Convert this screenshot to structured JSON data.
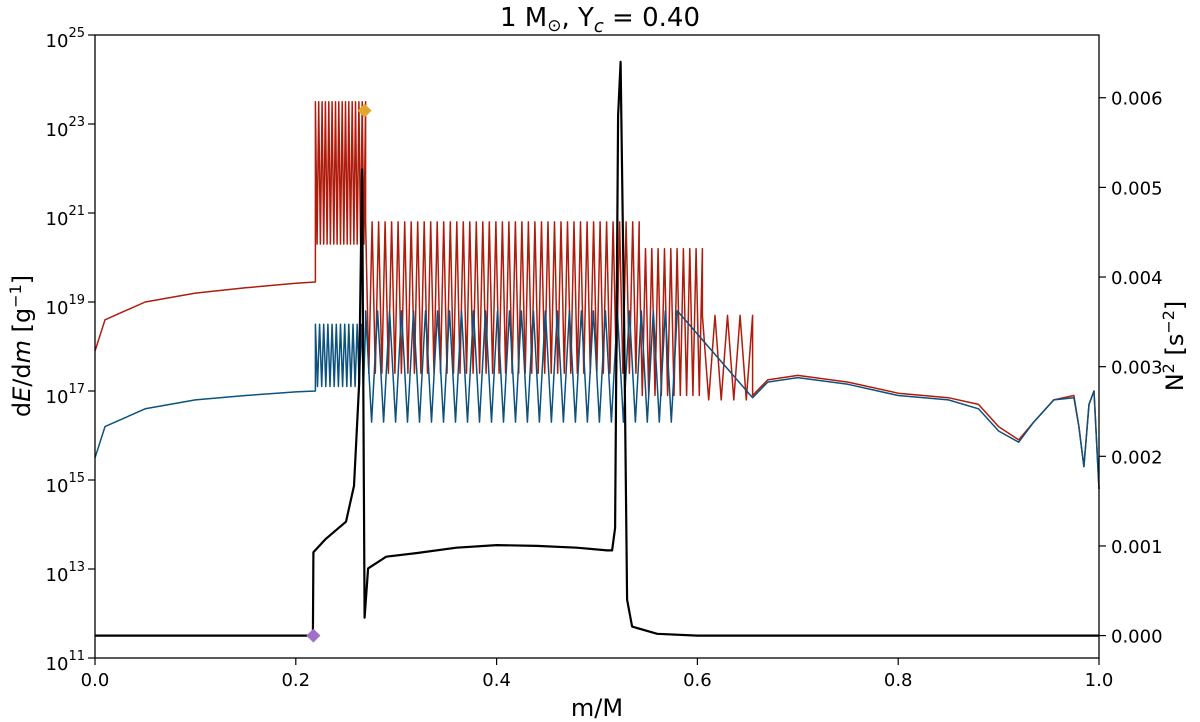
{
  "chart_data": {
    "type": "line",
    "title": {
      "main": "1 M",
      "sun_symbol": "⊙",
      "sep": ", Y",
      "sub": "c",
      "tail": " = 0.40"
    },
    "xlabel": "m/M",
    "ylabel_left": {
      "pre": "d",
      "E": "E",
      "mid": "/d",
      "m": "m",
      "post": " [g",
      "sup": "−1",
      "end": "]"
    },
    "ylabel_right": {
      "pre": "N",
      "sup1": "2",
      "mid": " [s",
      "sup2": "−2",
      "end": "]"
    },
    "xlim": [
      0.0,
      1.0
    ],
    "ylim_left_log10": [
      11,
      25
    ],
    "ylim_right": [
      -0.00025,
      0.0067
    ],
    "left_scale": "log",
    "grid": false,
    "x_ticks": [
      {
        "v": 0.0,
        "label": "0.0"
      },
      {
        "v": 0.2,
        "label": "0.2"
      },
      {
        "v": 0.4,
        "label": "0.4"
      },
      {
        "v": 0.6,
        "label": "0.6"
      },
      {
        "v": 0.8,
        "label": "0.8"
      },
      {
        "v": 1.0,
        "label": "1.0"
      }
    ],
    "left_ticks": [
      {
        "exp": 11,
        "base": "10",
        "sup": "11"
      },
      {
        "exp": 13,
        "base": "10",
        "sup": "13"
      },
      {
        "exp": 15,
        "base": "10",
        "sup": "15"
      },
      {
        "exp": 17,
        "base": "10",
        "sup": "17"
      },
      {
        "exp": 19,
        "base": "10",
        "sup": "19"
      },
      {
        "exp": 21,
        "base": "10",
        "sup": "21"
      },
      {
        "exp": 23,
        "base": "10",
        "sup": "23"
      },
      {
        "exp": 25,
        "base": "10",
        "sup": "25"
      }
    ],
    "right_ticks": [
      {
        "v": 0.0,
        "label": "0.000"
      },
      {
        "v": 0.001,
        "label": "0.001"
      },
      {
        "v": 0.002,
        "label": "0.002"
      },
      {
        "v": 0.003,
        "label": "0.003"
      },
      {
        "v": 0.004,
        "label": "0.004"
      },
      {
        "v": 0.005,
        "label": "0.005"
      },
      {
        "v": 0.006,
        "label": "0.006"
      }
    ],
    "series": [
      {
        "axis": "left",
        "color": "#b01c0c",
        "envelope": [
          [
            0.0,
            17.9
          ],
          [
            0.01,
            18.6
          ],
          [
            0.05,
            19.0
          ],
          [
            0.1,
            19.2
          ],
          [
            0.15,
            19.32
          ],
          [
            0.2,
            19.42
          ],
          [
            0.2195,
            19.45
          ]
        ],
        "osc_bands": [
          {
            "x0": 0.2195,
            "x1": 0.2695,
            "top": 23.5,
            "bottom": 20.3,
            "cycles": 15
          },
          {
            "x0": 0.2695,
            "x1": 0.542,
            "top": 20.8,
            "bottom": 17.4,
            "cycles": 42
          },
          {
            "x0": 0.542,
            "x1": 0.605,
            "top": 20.2,
            "bottom": 16.9,
            "cycles": 10
          },
          {
            "x0": 0.605,
            "x1": 0.655,
            "top": 18.7,
            "bottom": 16.8,
            "cycles": 4
          }
        ],
        "tail": [
          [
            0.655,
            16.9
          ],
          [
            0.67,
            17.25
          ],
          [
            0.7,
            17.35
          ],
          [
            0.75,
            17.2
          ],
          [
            0.8,
            16.95
          ],
          [
            0.85,
            16.85
          ],
          [
            0.88,
            16.7
          ],
          [
            0.9,
            16.2
          ],
          [
            0.92,
            15.9
          ],
          [
            0.935,
            16.3
          ],
          [
            0.955,
            16.8
          ],
          [
            0.975,
            16.9
          ],
          [
            0.98,
            16.2
          ],
          [
            0.985,
            15.3
          ],
          [
            0.99,
            16.7
          ],
          [
            0.995,
            17.0
          ],
          [
            1.0,
            14.8
          ]
        ]
      },
      {
        "axis": "left",
        "color": "#0d527e",
        "envelope": [
          [
            0.0,
            15.5
          ],
          [
            0.01,
            16.2
          ],
          [
            0.05,
            16.6
          ],
          [
            0.1,
            16.8
          ],
          [
            0.15,
            16.9
          ],
          [
            0.2,
            16.98
          ],
          [
            0.2195,
            17.0
          ]
        ],
        "osc_bands": [
          {
            "x0": 0.2195,
            "x1": 0.2695,
            "top": 18.5,
            "bottom": 17.1,
            "cycles": 12
          },
          {
            "x0": 0.2695,
            "x1": 0.58,
            "top": 18.8,
            "bottom": 16.3,
            "cycles": 26
          }
        ],
        "tail": [
          [
            0.655,
            16.85
          ],
          [
            0.67,
            17.2
          ],
          [
            0.7,
            17.3
          ],
          [
            0.75,
            17.15
          ],
          [
            0.8,
            16.9
          ],
          [
            0.85,
            16.8
          ],
          [
            0.88,
            16.6
          ],
          [
            0.9,
            16.1
          ],
          [
            0.92,
            15.85
          ],
          [
            0.935,
            16.3
          ],
          [
            0.955,
            16.8
          ],
          [
            0.975,
            16.85
          ],
          [
            0.98,
            16.2
          ],
          [
            0.985,
            15.3
          ],
          [
            0.99,
            16.7
          ],
          [
            0.995,
            17.0
          ],
          [
            1.0,
            14.8
          ]
        ]
      },
      {
        "axis": "right",
        "color": "#000000",
        "points": [
          [
            0.0,
            0.0
          ],
          [
            0.1,
            0.0
          ],
          [
            0.21,
            0.0
          ],
          [
            0.217,
            0.0
          ],
          [
            0.2175,
            0.00093
          ],
          [
            0.23,
            0.00108
          ],
          [
            0.25,
            0.00127
          ],
          [
            0.258,
            0.00167
          ],
          [
            0.263,
            0.0028
          ],
          [
            0.266,
            0.0052
          ],
          [
            0.2685,
            0.0002
          ],
          [
            0.272,
            0.00075
          ],
          [
            0.29,
            0.00088
          ],
          [
            0.32,
            0.00092
          ],
          [
            0.36,
            0.00098
          ],
          [
            0.4,
            0.00101
          ],
          [
            0.44,
            0.001
          ],
          [
            0.48,
            0.00098
          ],
          [
            0.51,
            0.00095
          ],
          [
            0.515,
            0.00095
          ],
          [
            0.518,
            0.0012
          ],
          [
            0.521,
            0.0058
          ],
          [
            0.5235,
            0.0064
          ],
          [
            0.527,
            0.0035
          ],
          [
            0.53,
            0.0004
          ],
          [
            0.535,
            0.0001
          ],
          [
            0.56,
            2e-05
          ],
          [
            0.6,
            0.0
          ],
          [
            1.0,
            0.0
          ]
        ]
      }
    ],
    "markers": [
      {
        "axis": "left",
        "x": 0.2685,
        "y": 23.3,
        "color": "#e3a72f"
      },
      {
        "axis": "right",
        "x": 0.2175,
        "y": 0.0,
        "color": "#9f6fc9"
      }
    ]
  }
}
